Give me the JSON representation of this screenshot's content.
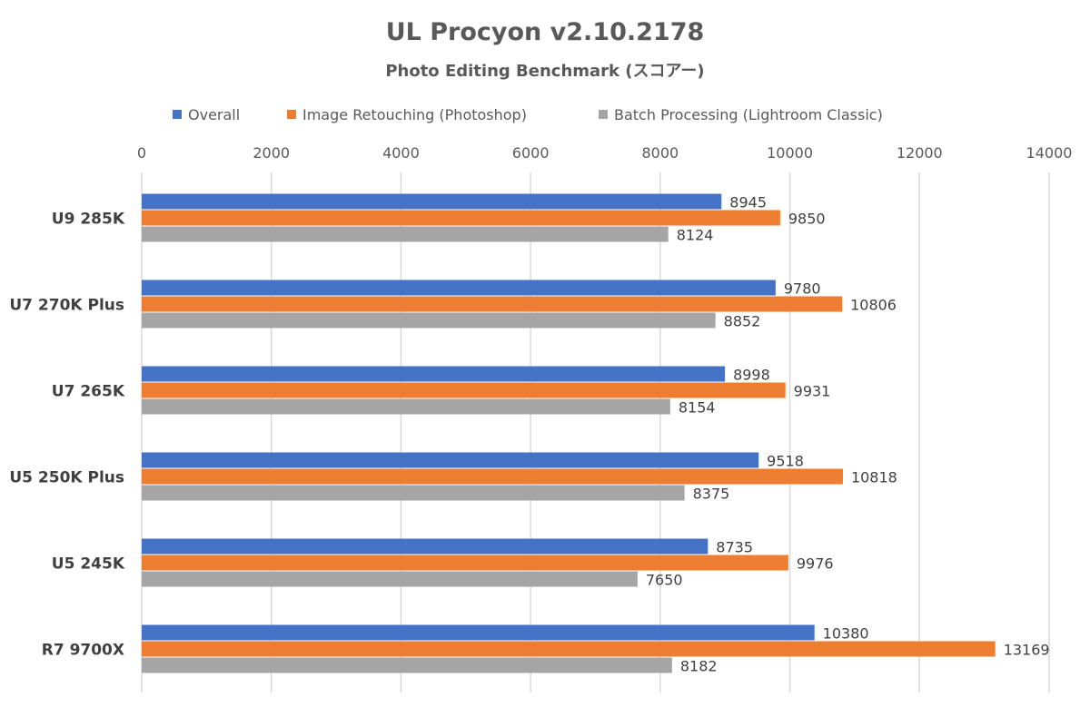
{
  "chart_data": {
    "type": "bar",
    "orientation": "horizontal",
    "title": "UL Procyon v2.10.2178",
    "subtitle": "Photo Editing Benchmark (スコアー)",
    "xlabel": "",
    "ylabel": "",
    "xlim": [
      0,
      14000
    ],
    "xticks": [
      0,
      2000,
      4000,
      6000,
      8000,
      10000,
      12000,
      14000
    ],
    "grid": true,
    "legend_position": "top",
    "categories": [
      "U9 285K",
      "U7 270K Plus",
      "U7 265K",
      "U5 250K Plus",
      "U5 245K",
      "R7 9700X"
    ],
    "series": [
      {
        "name": "Overall",
        "color": "#4472C4",
        "values": [
          8945,
          9780,
          8998,
          9518,
          8735,
          10380
        ]
      },
      {
        "name": "Image Retouching (Photoshop)",
        "color": "#ED7D31",
        "values": [
          9850,
          10806,
          9931,
          10818,
          9976,
          13169
        ]
      },
      {
        "name": "Batch Processing (Lightroom Classic)",
        "color": "#A5A5A5",
        "values": [
          8124,
          8852,
          8154,
          8375,
          7650,
          8182
        ]
      }
    ]
  }
}
